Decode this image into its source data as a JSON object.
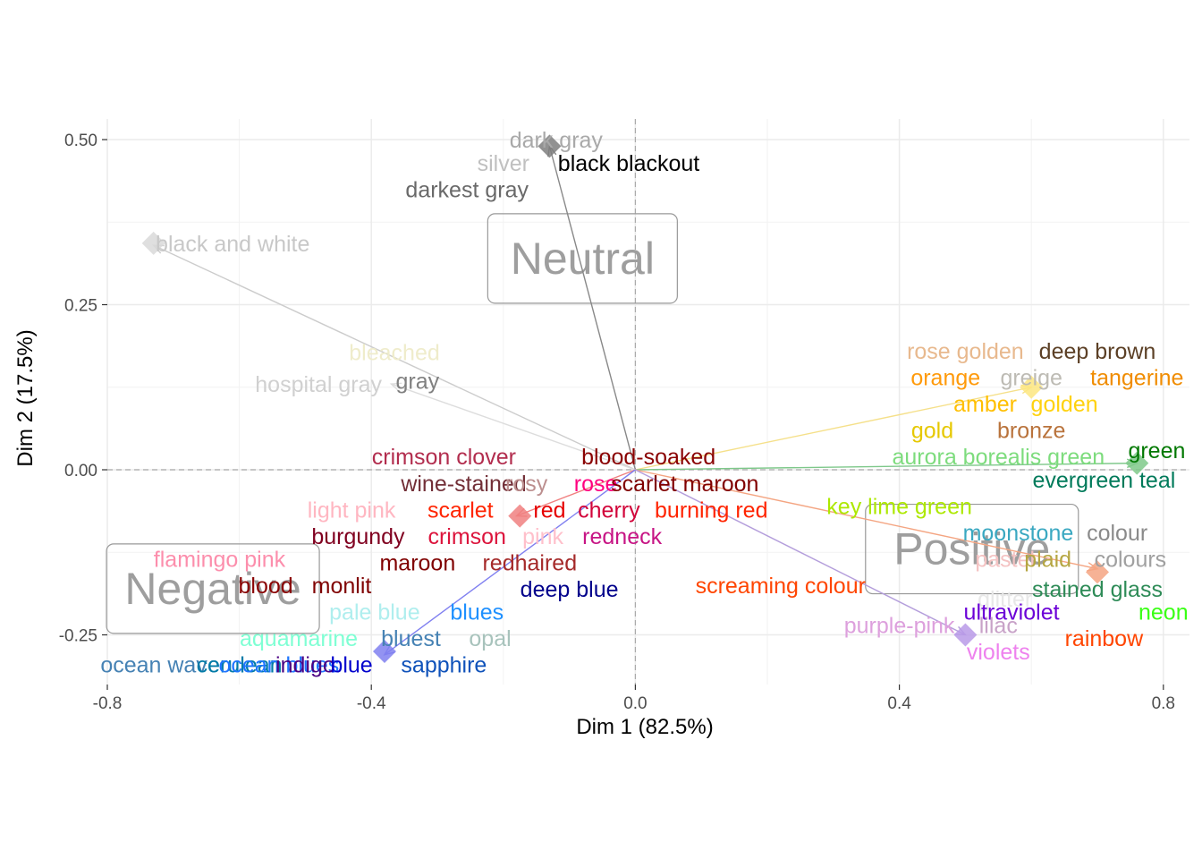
{
  "chart_data": {
    "type": "scatter",
    "xlabel": "Dim 1 (82.5%)",
    "ylabel": "Dim 2 (17.5%)",
    "xlim": [
      -0.8,
      0.83
    ],
    "ylim": [
      -0.3,
      0.51
    ],
    "x_ticks": [
      {
        "v": -0.8,
        "label": "-0.8"
      },
      {
        "v": -0.4,
        "label": "-0.4"
      },
      {
        "v": 0.0,
        "label": "0.0"
      },
      {
        "v": 0.4,
        "label": "0.4"
      },
      {
        "v": 0.8,
        "label": "0.8"
      }
    ],
    "y_ticks": [
      {
        "v": 0.5,
        "label": "0.50"
      },
      {
        "v": 0.25,
        "label": "0.25"
      },
      {
        "v": 0.0,
        "label": "0.00"
      },
      {
        "v": -0.25,
        "label": "-0.25"
      }
    ],
    "grid": true,
    "reference_lines": [
      {
        "axis": "x",
        "value": 0
      },
      {
        "axis": "y",
        "value": 0
      }
    ],
    "regions": [
      {
        "label": "Neutral",
        "x": -0.08,
        "y": 0.32
      },
      {
        "label": "Positive",
        "x": 0.51,
        "y": -0.12
      },
      {
        "label": "Negative",
        "x": -0.64,
        "y": -0.18
      }
    ],
    "arrows": [
      {
        "x": -0.13,
        "y": 0.49,
        "color": "#888888"
      },
      {
        "x": -0.73,
        "y": 0.34,
        "color": "#cccccc"
      },
      {
        "x": -0.37,
        "y": 0.13,
        "color": "#dddddd"
      },
      {
        "x": 0.6,
        "y": 0.125,
        "color": "#f5e08a"
      },
      {
        "x": 0.76,
        "y": 0.01,
        "color": "#7ec88a"
      },
      {
        "x": -0.18,
        "y": -0.07,
        "color": "#f08080"
      },
      {
        "x": 0.7,
        "y": -0.15,
        "color": "#f4a582"
      },
      {
        "x": 0.5,
        "y": -0.25,
        "color": "#b39ddb"
      },
      {
        "x": -0.38,
        "y": -0.28,
        "color": "#8080f0"
      }
    ],
    "centroids": [
      {
        "x": -0.13,
        "y": 0.49,
        "color": "#7f7f7f"
      },
      {
        "x": -0.73,
        "y": 0.343,
        "color": "#d9d9d9"
      },
      {
        "x": 0.6,
        "y": 0.125,
        "color": "#fde680"
      },
      {
        "x": 0.76,
        "y": 0.01,
        "color": "#7fc98a"
      },
      {
        "x": -0.175,
        "y": -0.07,
        "color": "#f08080"
      },
      {
        "x": 0.7,
        "y": -0.155,
        "color": "#f4a582"
      },
      {
        "x": 0.5,
        "y": -0.25,
        "color": "#b89ae8"
      },
      {
        "x": -0.38,
        "y": -0.275,
        "color": "#8080f0"
      }
    ],
    "points": [
      {
        "label": "dark gray",
        "x": -0.12,
        "y": 0.5,
        "color": "#a9a9a9"
      },
      {
        "label": "silver",
        "x": -0.2,
        "y": 0.465,
        "color": "#c0c0c0"
      },
      {
        "label": "black blackout",
        "x": -0.01,
        "y": 0.465,
        "color": "#000000"
      },
      {
        "label": "darkest gray",
        "x": -0.255,
        "y": 0.425,
        "color": "#696969"
      },
      {
        "label": "black and white",
        "x": -0.61,
        "y": 0.343,
        "color": "#c8c8c8"
      },
      {
        "label": "bleached",
        "x": -0.365,
        "y": 0.178,
        "color": "#efeccb"
      },
      {
        "label": "hospital gray",
        "x": -0.48,
        "y": 0.13,
        "color": "#d0d0d0"
      },
      {
        "label": "gray",
        "x": -0.33,
        "y": 0.135,
        "color": "#808080"
      },
      {
        "label": "rose golden",
        "x": 0.5,
        "y": 0.18,
        "color": "#e8b98e"
      },
      {
        "label": "deep brown",
        "x": 0.7,
        "y": 0.18,
        "color": "#5c4026"
      },
      {
        "label": "orange",
        "x": 0.47,
        "y": 0.14,
        "color": "#ff9a0a"
      },
      {
        "label": "greige",
        "x": 0.6,
        "y": 0.14,
        "color": "#bdbbb4"
      },
      {
        "label": "tangerine",
        "x": 0.76,
        "y": 0.14,
        "color": "#f08c00"
      },
      {
        "label": "amber",
        "x": 0.53,
        "y": 0.1,
        "color": "#ffbf00"
      },
      {
        "label": "golden",
        "x": 0.65,
        "y": 0.1,
        "color": "#ffd20f"
      },
      {
        "label": "gold",
        "x": 0.45,
        "y": 0.06,
        "color": "#e6c800"
      },
      {
        "label": "bronze",
        "x": 0.6,
        "y": 0.06,
        "color": "#b9733c"
      },
      {
        "label": "aurora borealis green",
        "x": 0.55,
        "y": 0.02,
        "color": "#7ddc7d"
      },
      {
        "label": "green",
        "x": 0.79,
        "y": 0.03,
        "color": "#007800"
      },
      {
        "label": "evergreen teal",
        "x": 0.71,
        "y": -0.015,
        "color": "#007a5a"
      },
      {
        "label": "crimson clover",
        "x": -0.29,
        "y": 0.02,
        "color": "#b22d4e"
      },
      {
        "label": "blood-soaked",
        "x": 0.02,
        "y": 0.02,
        "color": "#8a0303"
      },
      {
        "label": "wine-stained",
        "x": -0.26,
        "y": -0.02,
        "color": "#722f37"
      },
      {
        "label": "rosy",
        "x": -0.165,
        "y": -0.02,
        "color": "#bc8f8f"
      },
      {
        "label": "rose",
        "x": -0.06,
        "y": -0.02,
        "color": "#ff007f"
      },
      {
        "label": "scarlet maroon",
        "x": 0.075,
        "y": -0.02,
        "color": "#800000"
      },
      {
        "label": "key lime green",
        "x": 0.4,
        "y": -0.055,
        "color": "#ade800"
      },
      {
        "label": "light pink",
        "x": -0.43,
        "y": -0.06,
        "color": "#ffb6c1"
      },
      {
        "label": "scarlet",
        "x": -0.265,
        "y": -0.06,
        "color": "#ff2400"
      },
      {
        "label": "red",
        "x": -0.13,
        "y": -0.06,
        "color": "#e60000"
      },
      {
        "label": "cherry",
        "x": -0.04,
        "y": -0.06,
        "color": "#d2043a"
      },
      {
        "label": "burning red",
        "x": 0.115,
        "y": -0.06,
        "color": "#ff2400"
      },
      {
        "label": "moonstone",
        "x": 0.58,
        "y": -0.095,
        "color": "#3aa8c1"
      },
      {
        "label": "colour",
        "x": 0.73,
        "y": -0.095,
        "color": "#8a8a8a"
      },
      {
        "label": "burgundy",
        "x": -0.42,
        "y": -0.1,
        "color": "#800020"
      },
      {
        "label": "crimson",
        "x": -0.255,
        "y": -0.1,
        "color": "#dc143c"
      },
      {
        "label": "pink",
        "x": -0.14,
        "y": -0.1,
        "color": "#ffc0cb"
      },
      {
        "label": "redneck",
        "x": -0.02,
        "y": -0.1,
        "color": "#c71585"
      },
      {
        "label": "flamingo pink",
        "x": -0.63,
        "y": -0.135,
        "color": "#fc8eac"
      },
      {
        "label": "pastel",
        "x": 0.56,
        "y": -0.135,
        "color": "#f4c2c2"
      },
      {
        "label": "plaid",
        "x": 0.625,
        "y": -0.135,
        "color": "#b5a642"
      },
      {
        "label": "colours",
        "x": 0.75,
        "y": -0.135,
        "color": "#a0a0a0"
      },
      {
        "label": "maroon",
        "x": -0.33,
        "y": -0.14,
        "color": "#800000"
      },
      {
        "label": "redhaired",
        "x": -0.16,
        "y": -0.14,
        "color": "#a52a2a"
      },
      {
        "label": "blood",
        "x": -0.56,
        "y": -0.175,
        "color": "#8a0303"
      },
      {
        "label": "monlit",
        "x": -0.445,
        "y": -0.175,
        "color": "#800000"
      },
      {
        "label": "screaming colour",
        "x": 0.22,
        "y": -0.175,
        "color": "#ff4500"
      },
      {
        "label": "stained glass",
        "x": 0.7,
        "y": -0.18,
        "color": "#2e8b57"
      },
      {
        "label": "deep blue",
        "x": -0.1,
        "y": -0.18,
        "color": "#00008b"
      },
      {
        "label": "pale blue",
        "x": -0.395,
        "y": -0.215,
        "color": "#afeeee"
      },
      {
        "label": "blues",
        "x": -0.24,
        "y": -0.215,
        "color": "#1e90ff"
      },
      {
        "label": "glitter",
        "x": 0.56,
        "y": -0.195,
        "color": "#e8e8e8"
      },
      {
        "label": "ultraviolet",
        "x": 0.57,
        "y": -0.215,
        "color": "#6b00d7"
      },
      {
        "label": "neon",
        "x": 0.8,
        "y": -0.215,
        "color": "#39ff14"
      },
      {
        "label": "purple-pink",
        "x": 0.4,
        "y": -0.235,
        "color": "#dda0dd"
      },
      {
        "label": "lilac",
        "x": 0.55,
        "y": -0.235,
        "color": "#c8a2c8"
      },
      {
        "label": "aquamarine",
        "x": -0.51,
        "y": -0.255,
        "color": "#7fffd4"
      },
      {
        "label": "bluest",
        "x": -0.34,
        "y": -0.255,
        "color": "#4682b4"
      },
      {
        "label": "opal",
        "x": -0.22,
        "y": -0.255,
        "color": "#a8c3bc"
      },
      {
        "label": "rainbow",
        "x": 0.71,
        "y": -0.255,
        "color": "#ff4500"
      },
      {
        "label": "violets",
        "x": 0.55,
        "y": -0.275,
        "color": "#ee82ee"
      },
      {
        "label": "ocean wave",
        "x": -0.72,
        "y": -0.295,
        "color": "#4682b4"
      },
      {
        "label": "cerulean",
        "x": -0.6,
        "y": -0.295,
        "color": "#007ba7"
      },
      {
        "label": "ocean blues",
        "x": -0.54,
        "y": -0.295,
        "color": "#1f75fe"
      },
      {
        "label": "indigo",
        "x": -0.5,
        "y": -0.295,
        "color": "#4b0082"
      },
      {
        "label": "blue",
        "x": -0.43,
        "y": -0.295,
        "color": "#0000cd"
      },
      {
        "label": "sapphire",
        "x": -0.29,
        "y": -0.295,
        "color": "#0f52ba"
      }
    ]
  }
}
